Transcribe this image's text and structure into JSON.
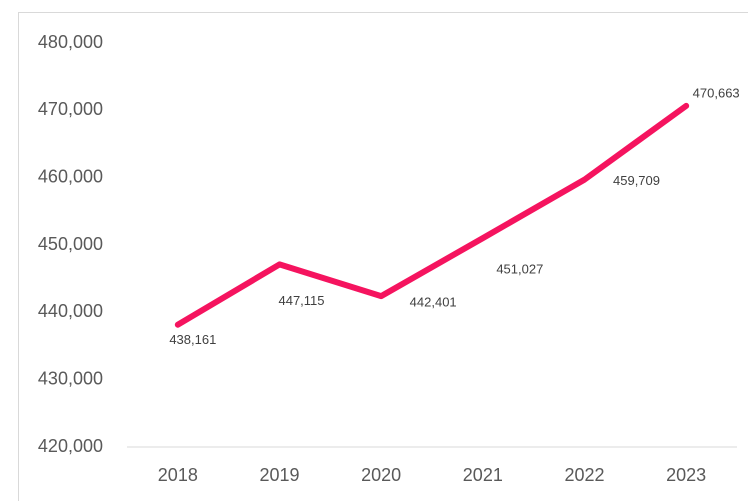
{
  "chart_data": {
    "type": "line",
    "categories": [
      "2018",
      "2019",
      "2020",
      "2021",
      "2022",
      "2023"
    ],
    "series": [
      {
        "color": "#f5145f",
        "values": [
          438161,
          447115,
          442401,
          451027,
          459709,
          470663
        ],
        "value_labels": [
          "438,161",
          "447,115",
          "442,401",
          "451,027",
          "459,709",
          "470,663"
        ]
      }
    ],
    "ylim": [
      420000,
      480000
    ],
    "yticks": [
      {
        "value": 420000,
        "label": "420,000"
      },
      {
        "value": 430000,
        "label": "430,000"
      },
      {
        "value": 440000,
        "label": "440,000"
      },
      {
        "value": 450000,
        "label": "450,000"
      },
      {
        "value": 460000,
        "label": "460,000"
      },
      {
        "value": 470000,
        "label": "470,000"
      },
      {
        "value": 480000,
        "label": "480,000"
      }
    ],
    "grid": false
  }
}
